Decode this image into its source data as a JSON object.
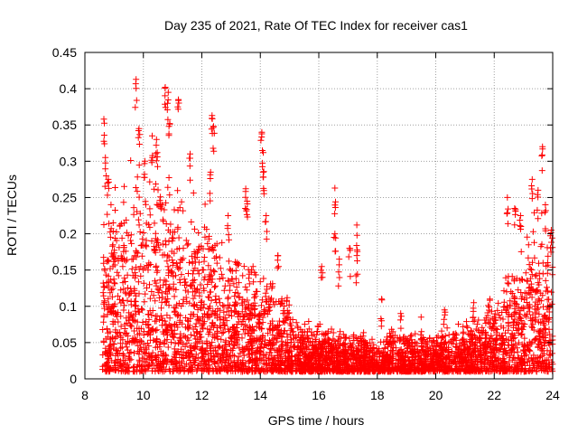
{
  "chart_data": {
    "type": "scatter",
    "title": "Day 235 of 2021, Rate Of TEC Index for receiver cas1",
    "xlabel": "GPS time / hours",
    "ylabel": "ROTI / TECUs",
    "xlim": [
      8,
      24
    ],
    "ylim": [
      0,
      0.45
    ],
    "x_ticks": [
      8,
      10,
      12,
      14,
      16,
      18,
      20,
      22,
      24
    ],
    "y_ticks": [
      0,
      0.05,
      0.1,
      0.15,
      0.2,
      0.25,
      0.3,
      0.35,
      0.4,
      0.45
    ],
    "x_tick_labels": [
      "8",
      "10",
      "12",
      "14",
      "16",
      "18",
      "20",
      "22",
      "24"
    ],
    "y_tick_labels": [
      "0",
      "0.05",
      "0.1",
      "0.15",
      "0.2",
      "0.25",
      "0.3",
      "0.35",
      "0.4",
      "0.45"
    ],
    "grid": true,
    "marker": "+",
    "marker_color": "#ff0000",
    "envelope": {
      "x": [
        8.6,
        9.0,
        9.5,
        10.0,
        10.5,
        11.0,
        11.5,
        12.0,
        12.5,
        13.0,
        13.5,
        14.0,
        14.5,
        15.0,
        15.5,
        16.0,
        16.5,
        17.0,
        17.5,
        18.0,
        18.5,
        19.0,
        19.5,
        20.0,
        20.5,
        21.0,
        21.5,
        22.0,
        22.5,
        23.0,
        23.5,
        24.0
      ],
      "typical_max": [
        0.2,
        0.25,
        0.26,
        0.27,
        0.28,
        0.26,
        0.24,
        0.22,
        0.18,
        0.16,
        0.15,
        0.14,
        0.12,
        0.1,
        0.07,
        0.07,
        0.07,
        0.06,
        0.06,
        0.05,
        0.06,
        0.06,
        0.06,
        0.06,
        0.07,
        0.07,
        0.08,
        0.1,
        0.14,
        0.18,
        0.2,
        0.18
      ],
      "typical_min": [
        0.01,
        0.01,
        0.01,
        0.01,
        0.01,
        0.01,
        0.01,
        0.01,
        0.01,
        0.01,
        0.01,
        0.01,
        0.01,
        0.01,
        0.01,
        0.01,
        0.01,
        0.01,
        0.01,
        0.01,
        0.01,
        0.01,
        0.01,
        0.01,
        0.01,
        0.01,
        0.01,
        0.01,
        0.01,
        0.01,
        0.01,
        0.01
      ]
    },
    "outliers": [
      [
        8.65,
        0.358
      ],
      [
        8.7,
        0.305
      ],
      [
        8.8,
        0.275
      ],
      [
        9.75,
        0.413
      ],
      [
        9.85,
        0.345
      ],
      [
        10.05,
        0.3
      ],
      [
        10.3,
        0.335
      ],
      [
        10.45,
        0.33
      ],
      [
        10.75,
        0.402
      ],
      [
        10.85,
        0.395
      ],
      [
        10.9,
        0.352
      ],
      [
        11.2,
        0.385
      ],
      [
        11.6,
        0.31
      ],
      [
        12.35,
        0.363
      ],
      [
        12.4,
        0.348
      ],
      [
        12.3,
        0.285
      ],
      [
        12.9,
        0.225
      ],
      [
        13.5,
        0.262
      ],
      [
        13.55,
        0.245
      ],
      [
        14.05,
        0.34
      ],
      [
        14.1,
        0.312
      ],
      [
        14.1,
        0.285
      ],
      [
        14.2,
        0.225
      ],
      [
        14.6,
        0.17
      ],
      [
        16.1,
        0.155
      ],
      [
        16.55,
        0.263
      ],
      [
        16.55,
        0.2
      ],
      [
        16.7,
        0.165
      ],
      [
        17.05,
        0.18
      ],
      [
        17.3,
        0.212
      ],
      [
        17.3,
        0.17
      ],
      [
        18.15,
        0.11
      ],
      [
        18.8,
        0.09
      ],
      [
        19.5,
        0.085
      ],
      [
        20.3,
        0.095
      ],
      [
        21.3,
        0.105
      ],
      [
        21.85,
        0.11
      ],
      [
        22.45,
        0.25
      ],
      [
        22.7,
        0.235
      ],
      [
        22.9,
        0.225
      ],
      [
        23.3,
        0.275
      ],
      [
        23.5,
        0.26
      ],
      [
        23.65,
        0.32
      ],
      [
        23.75,
        0.24
      ],
      [
        23.95,
        0.205
      ]
    ]
  }
}
